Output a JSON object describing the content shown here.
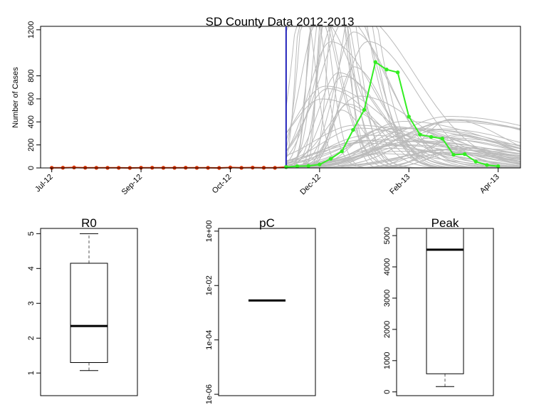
{
  "chart_data": [
    {
      "type": "line",
      "title": "SD County Data 2012-2013",
      "xlabel": "",
      "ylabel": "Number of Cases",
      "x_tick_labels": [
        "Jul-12",
        "Sep-12",
        "Oct-12",
        "Dec-12",
        "Feb-13",
        "Apr-13"
      ],
      "x_tick_weeks": [
        0,
        8,
        16,
        24,
        32,
        40
      ],
      "y_ticks": [
        0,
        200,
        400,
        600,
        800,
        1200
      ],
      "ylim": [
        0,
        1230
      ],
      "xlim": [
        -1,
        42
      ],
      "grid": false,
      "forecast_start_week": 21,
      "colors": {
        "observed": "#dd3300",
        "future": "#33ee22",
        "simulations": "#bbbbbb",
        "forecast_line": "#2222bb"
      },
      "series": [
        {
          "x": [
            0,
            1,
            2,
            3,
            4,
            5,
            6,
            7,
            8,
            9,
            10,
            11,
            12,
            13,
            14,
            15,
            16,
            17,
            18,
            19,
            20,
            21
          ],
          "values": [
            1,
            2,
            4,
            2,
            1,
            1,
            1,
            0,
            2,
            2,
            1,
            1,
            2,
            1,
            1,
            0,
            4,
            1,
            3,
            2,
            1,
            8
          ]
        },
        {
          "x": [
            21,
            22,
            23,
            24,
            25,
            26,
            27,
            28,
            29,
            30,
            31,
            32,
            33,
            34,
            35,
            36,
            37,
            38,
            39,
            40
          ],
          "values": [
            8,
            15,
            17,
            30,
            80,
            145,
            330,
            505,
            920,
            855,
            830,
            445,
            290,
            270,
            255,
            115,
            120,
            55,
            25,
            15
          ]
        }
      ]
    },
    {
      "type": "box",
      "title": "R0",
      "y_ticks": [
        1,
        2,
        3,
        4,
        5
      ],
      "ylim": [
        0.35,
        5.15
      ],
      "whisker_low": 1.07,
      "q1": 1.3,
      "median": 2.35,
      "q3": 4.15,
      "whisker_high": 5.0
    },
    {
      "type": "box",
      "title": "pC",
      "y_tick_labels": [
        "1e-06",
        "1e-04",
        "1e-02",
        "1e+00"
      ],
      "y_tick_exponents": [
        -6,
        -4,
        -2,
        0
      ],
      "log_scale": true,
      "ylim_exponent": [
        -6.05,
        0.1
      ],
      "median_exponent": -2.55
    },
    {
      "type": "box",
      "title": "Peak",
      "y_ticks": [
        0,
        1000,
        2000,
        3000,
        4000,
        5000
      ],
      "ylim": [
        -120,
        5230
      ],
      "whisker_low": 170,
      "q1": 580,
      "median": 4550,
      "q3": 5230,
      "whisker_high": 5230
    }
  ]
}
